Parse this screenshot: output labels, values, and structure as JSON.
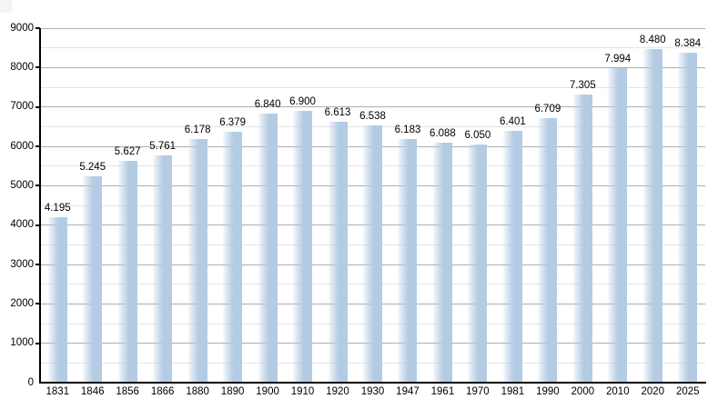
{
  "chart_data": {
    "type": "bar",
    "title": "",
    "xlabel": "",
    "ylabel": "",
    "categories": [
      "1831",
      "1846",
      "1856",
      "1866",
      "1880",
      "1890",
      "1900",
      "1910",
      "1920",
      "1930",
      "1947",
      "1961",
      "1970",
      "1981",
      "1990",
      "2000",
      "2010",
      "2020",
      "2025"
    ],
    "values": [
      4195,
      5245,
      5627,
      5761,
      6178,
      6379,
      6840,
      6900,
      6613,
      6538,
      6183,
      6088,
      6050,
      6401,
      6709,
      7305,
      7994,
      8480,
      8384
    ],
    "value_labels": [
      "4.195",
      "5.245",
      "5.627",
      "5.761",
      "6.178",
      "6.379",
      "6.840",
      "6.900",
      "6.613",
      "6.538",
      "6.183",
      "6.088",
      "6.050",
      "6.401",
      "6.709",
      "7.305",
      "7.994",
      "8.480",
      "8.384"
    ],
    "y_tick_labels": [
      "0",
      "1000",
      "2000",
      "3000",
      "4000",
      "5000",
      "6000",
      "7000",
      "8000",
      "9000"
    ],
    "ylim": [
      0,
      9000
    ],
    "y_major_step": 1000,
    "y_minor_step": 500,
    "grid": true,
    "legend": "none",
    "colors": {
      "bar_main": "#b3cbe3",
      "bar_fade_left": "rgba(179,203,227,0.10)",
      "major_gridline": "#aeaeae",
      "minor_gridline": "#e4e4e4",
      "axis": "#000000",
      "label_text": "#000000",
      "background": "#ffffff"
    }
  }
}
